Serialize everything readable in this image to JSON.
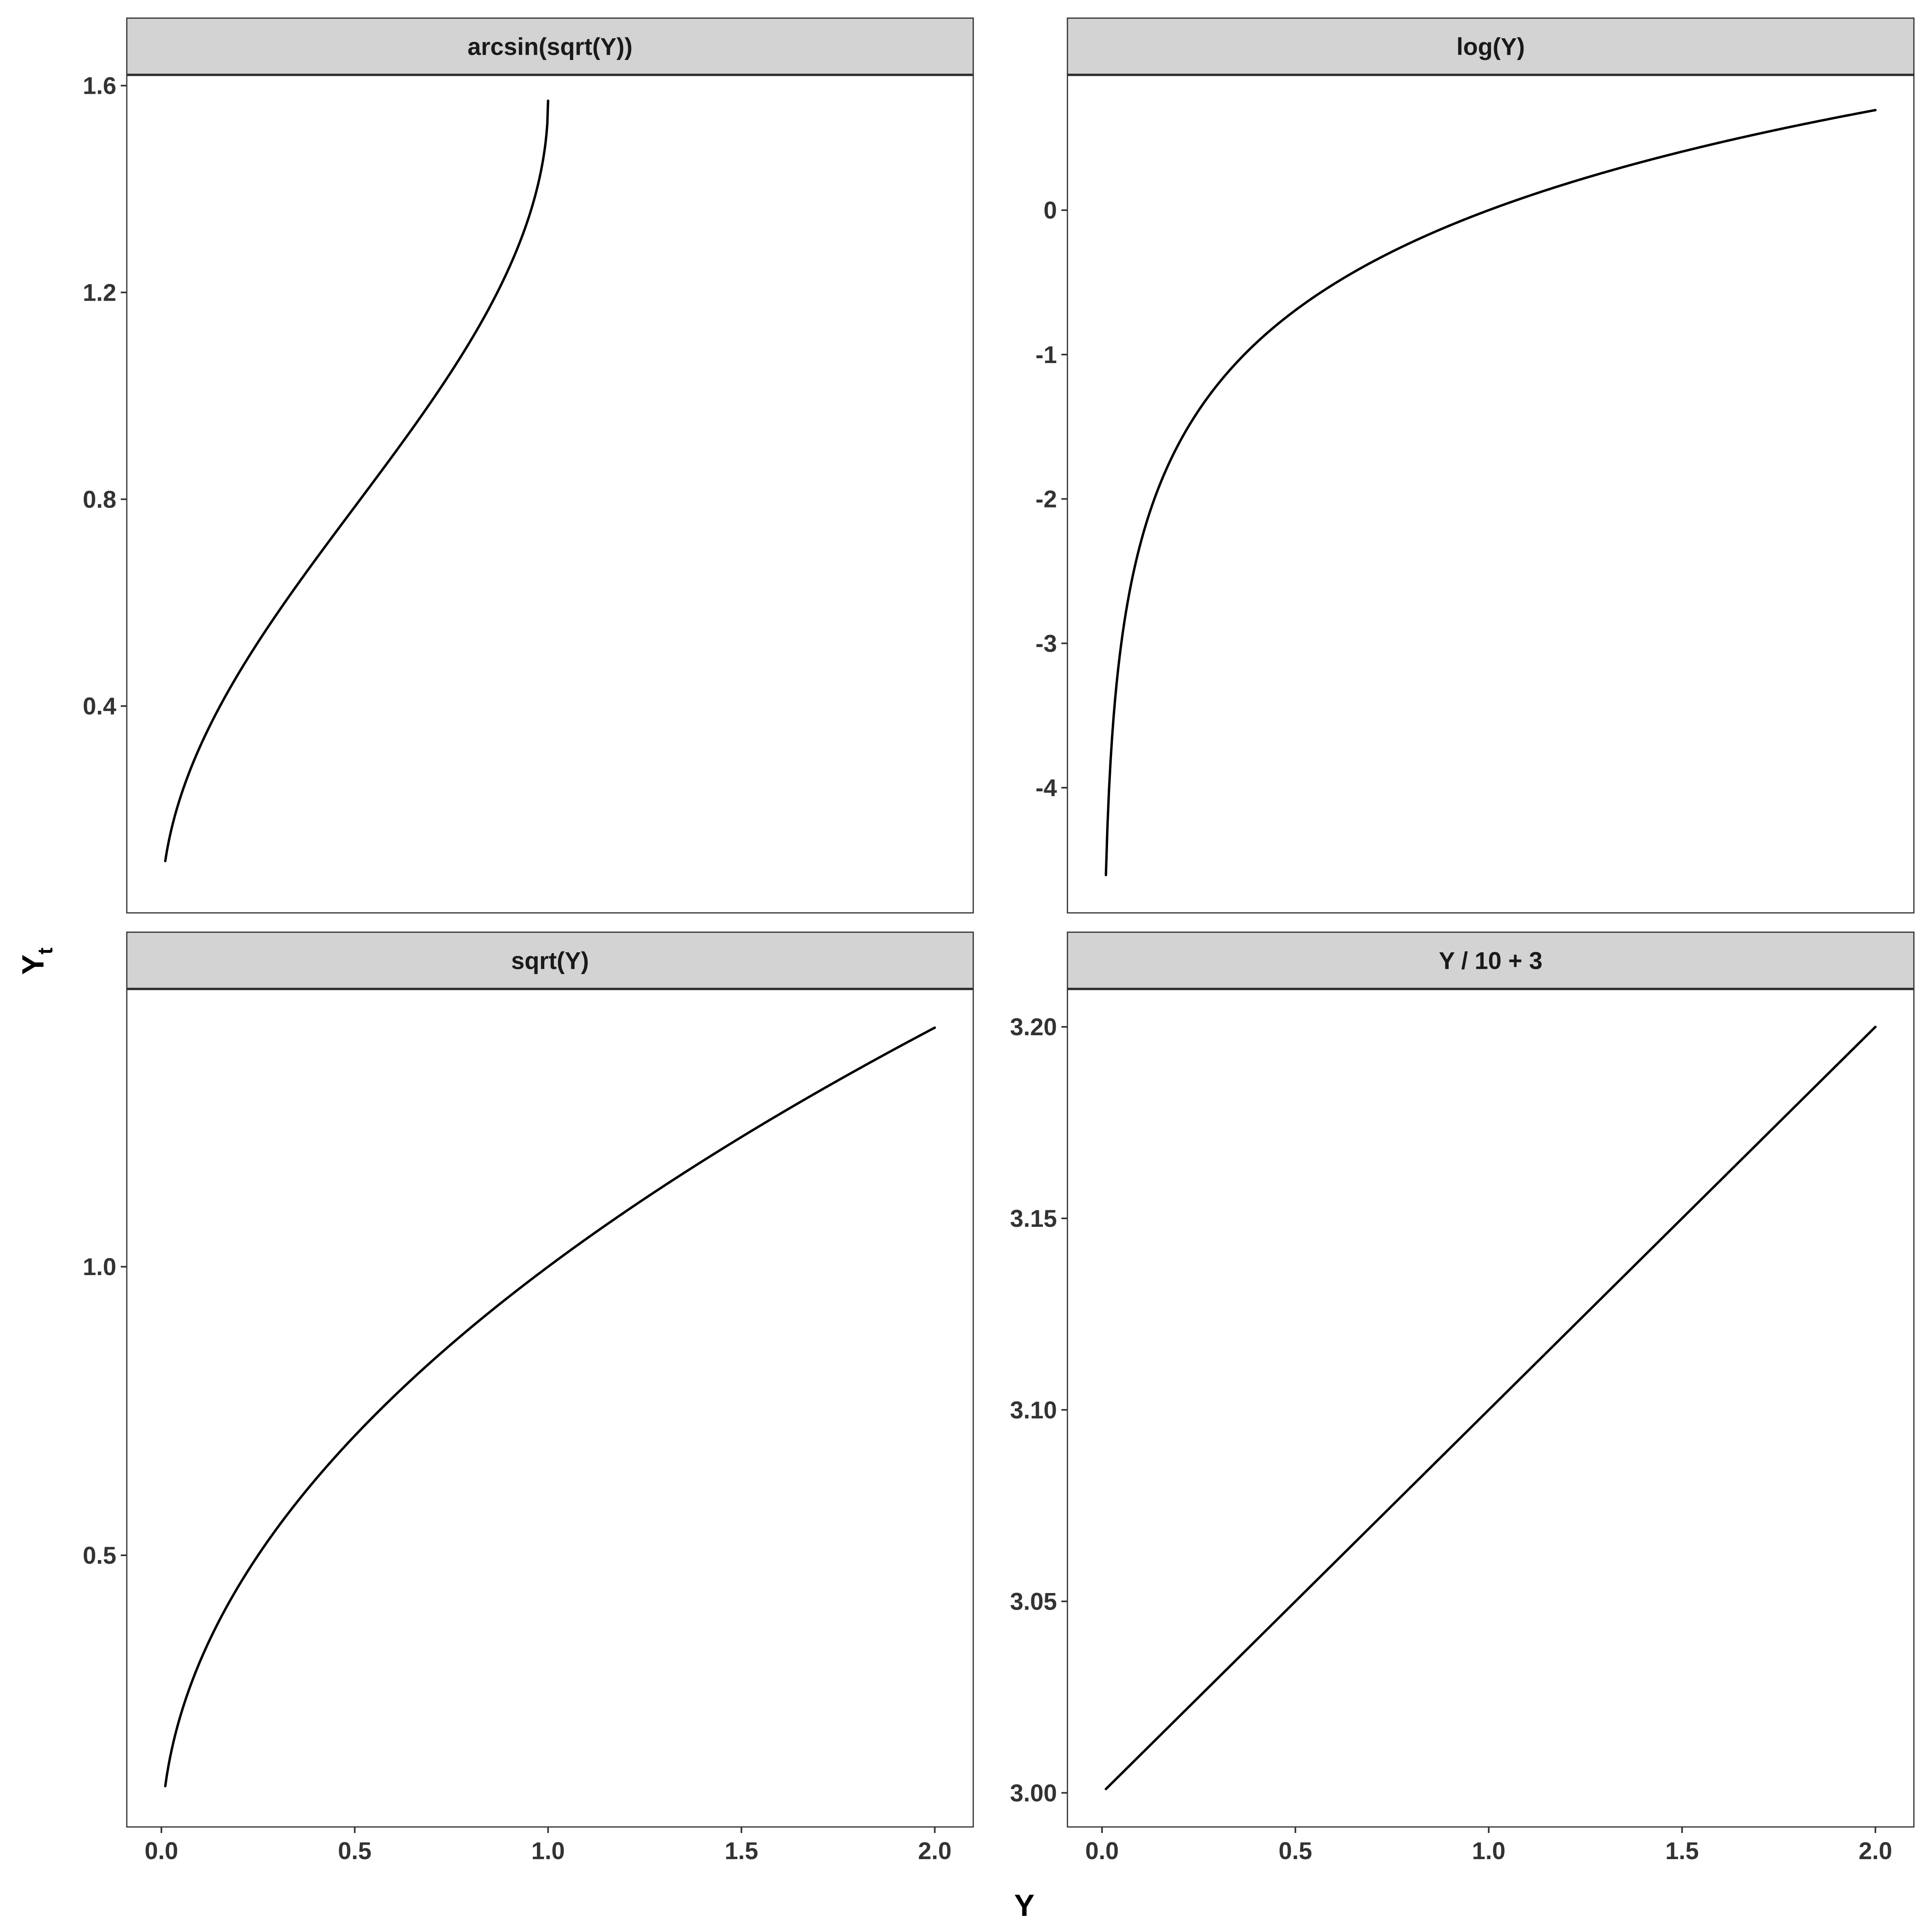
{
  "chart_data": {
    "type": "line",
    "xlabel": "Y",
    "ylabel": {
      "main": "Y",
      "subscript": "t"
    },
    "x_ticks": [
      "0.0",
      "0.5",
      "1.0",
      "1.5",
      "2.0"
    ],
    "line_color": "#000000",
    "strip_color": "#d3d3d3",
    "panels": [
      {
        "title": "arcsin(sqrt(Y))",
        "function": "arcsin_sqrt",
        "x_range": [
          0.01,
          1.0
        ],
        "xlim": [
          -0.0895,
          2.0995
        ],
        "ylim": [
          0.0,
          1.6208
        ],
        "y_ticks": [
          0.4,
          0.8,
          1.2,
          1.6
        ],
        "y_tick_labels": [
          "0.4",
          "0.8",
          "1.2",
          "1.6"
        ],
        "x_axis_visible": false
      },
      {
        "title": "log(Y)",
        "function": "log",
        "x_range": [
          0.01,
          2.0
        ],
        "xlim": [
          -0.0895,
          2.0995
        ],
        "ylim": [
          -4.867,
          0.9372
        ],
        "y_ticks": [
          -4,
          -3,
          -2,
          -1,
          0
        ],
        "y_tick_labels": [
          "-4",
          "-3",
          "-2",
          "-1",
          "0"
        ],
        "x_axis_visible": false
      },
      {
        "title": "sqrt(Y)",
        "function": "sqrt",
        "x_range": [
          0.01,
          2.0
        ],
        "xlim": [
          -0.0895,
          2.0995
        ],
        "ylim": [
          0.0293,
          1.4813
        ],
        "y_ticks": [
          0.5,
          1.0
        ],
        "y_tick_labels": [
          "0.5",
          "1.0"
        ],
        "x_axis_visible": true
      },
      {
        "title": "Y / 10 + 3",
        "function": "linear",
        "x_range": [
          0.01,
          2.0
        ],
        "xlim": [
          -0.0895,
          2.0995
        ],
        "ylim": [
          2.9911,
          3.2099
        ],
        "y_ticks": [
          3.0,
          3.05,
          3.1,
          3.15,
          3.2
        ],
        "y_tick_labels": [
          "3.00",
          "3.05",
          "3.10",
          "3.15",
          "3.20"
        ],
        "x_axis_visible": true
      }
    ]
  }
}
